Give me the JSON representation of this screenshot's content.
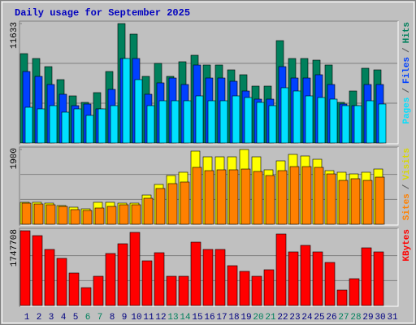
{
  "title": "Daily usage for September 2025",
  "chart_data": [
    {
      "type": "bar",
      "ylim": [
        0,
        11633
      ],
      "yticks": [
        11633
      ],
      "grid": true,
      "separator": "/",
      "series": [
        {
          "name": "Hits",
          "color": "#00805c",
          "values": [
            8705,
            8231,
            7439,
            6173,
            4590,
            3957,
            4907,
            6964,
            11633,
            10605,
            6489,
            7756,
            6489,
            7914,
            8547,
            7597,
            7597,
            7123,
            6648,
            5540,
            5540,
            9972,
            8231,
            8231,
            8072,
            7597,
            3957,
            5065,
            7281,
            7123,
            null
          ]
        },
        {
          "name": "Files",
          "color": "#0040ff",
          "values": [
            6964,
            6489,
            5698,
            4749,
            3640,
            3799,
            3324,
            5223,
            8231,
            8231,
            4749,
            5857,
            6331,
            5698,
            7597,
            6331,
            6331,
            6015,
            5065,
            4274,
            4274,
            7439,
            6331,
            6331,
            6648,
            5698,
            3799,
            3640,
            5698,
            5698,
            null
          ]
        },
        {
          "name": "Pages",
          "color": "#00e0ff",
          "values": [
            3482,
            3324,
            3640,
            3007,
            3324,
            2691,
            3324,
            3640,
            8231,
            6173,
            3640,
            4115,
            4115,
            4115,
            4590,
            4115,
            4115,
            4590,
            4432,
            3957,
            3640,
            5382,
            5065,
            4590,
            4432,
            4274,
            3640,
            3640,
            4115,
            3799,
            null
          ]
        }
      ]
    },
    {
      "type": "bar",
      "ylim": [
        0,
        1900
      ],
      "yticks": [
        1900
      ],
      "grid": true,
      "separator": "/",
      "series": [
        {
          "name": "Visits",
          "color": "#ffff00",
          "values": [
            558,
            558,
            537,
            475,
            434,
            392,
            558,
            558,
            537,
            537,
            743,
            1012,
            1239,
            1322,
            1859,
            1714,
            1714,
            1714,
            1900,
            1714,
            1384,
            1611,
            1776,
            1735,
            1652,
            1363,
            1322,
            1280,
            1322,
            1404,
            null
          ]
        },
        {
          "name": "Sites",
          "color": "#ff8000",
          "values": [
            537,
            516,
            496,
            454,
            372,
            351,
            413,
            454,
            496,
            496,
            661,
            909,
            1033,
            1074,
            1446,
            1363,
            1384,
            1384,
            1404,
            1342,
            1239,
            1363,
            1466,
            1466,
            1446,
            1280,
            1115,
            1157,
            1115,
            1198,
            null
          ]
        }
      ]
    },
    {
      "type": "bar",
      "ylim": [
        0,
        1747708
      ],
      "yticks": [
        1747708
      ],
      "grid": true,
      "categories": [
        "1",
        "2",
        "3",
        "4",
        "5",
        "6",
        "7",
        "8",
        "9",
        "10",
        "11",
        "12",
        "13",
        "14",
        "15",
        "16",
        "17",
        "18",
        "19",
        "20",
        "21",
        "22",
        "23",
        "24",
        "25",
        "26",
        "27",
        "28",
        "29",
        "30",
        "31"
      ],
      "category_colors": [
        "#000080",
        "#000080",
        "#000080",
        "#000080",
        "#000080",
        "#00805c",
        "#00805c",
        "#000080",
        "#000080",
        "#000080",
        "#000080",
        "#000080",
        "#00805c",
        "#00805c",
        "#000080",
        "#000080",
        "#000080",
        "#000080",
        "#000080",
        "#00805c",
        "#00805c",
        "#000080",
        "#000080",
        "#000080",
        "#000080",
        "#000080",
        "#00805c",
        "#00805c",
        "#000080",
        "#000080",
        "#000080"
      ],
      "series": [
        {
          "name": "KBytes",
          "color": "#ff0000",
          "values": [
            1747708,
            1633742,
            1310793,
            1101826,
            759880,
            417934,
            683892,
            1215808,
            1443772,
            1709730,
            1044835,
            1234805,
            683892,
            683892,
            1481766,
            1310793,
            1310793,
            930853,
            797874,
            683892,
            835868,
            1671736,
            1253802,
            1405778,
            1253802,
            1006841,
            360943,
            626901,
            1348787,
            1253802,
            null
          ]
        }
      ]
    }
  ]
}
